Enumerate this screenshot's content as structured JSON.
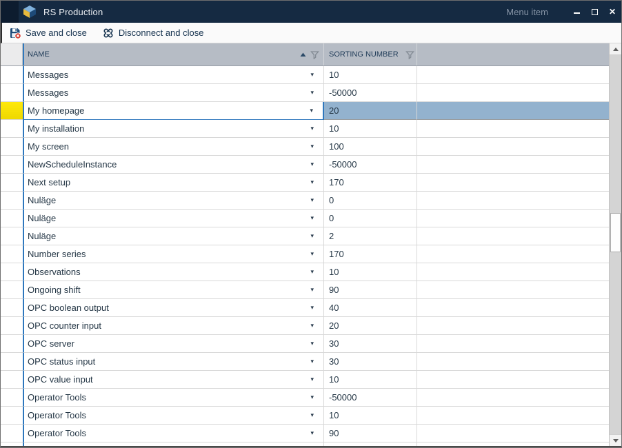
{
  "window": {
    "title": "RS Production",
    "menu_item": "Menu item"
  },
  "toolbar": {
    "save_label": "Save and close",
    "disconnect_label": "Disconnect and close"
  },
  "grid": {
    "columns": [
      {
        "label": "NAME",
        "sorted": "asc",
        "has_filter_icon": true
      },
      {
        "label": "SORTING NUMBER",
        "has_filter_icon": true
      }
    ],
    "selected_index": 2,
    "rows": [
      {
        "name": "Messages",
        "sorting_number": "10"
      },
      {
        "name": "Messages",
        "sorting_number": "-50000"
      },
      {
        "name": "My homepage",
        "sorting_number": "20"
      },
      {
        "name": "My installation",
        "sorting_number": "10"
      },
      {
        "name": "My screen",
        "sorting_number": "100"
      },
      {
        "name": "NewScheduleInstance",
        "sorting_number": "-50000"
      },
      {
        "name": "Next setup",
        "sorting_number": "170"
      },
      {
        "name": "Nuläge",
        "sorting_number": "0"
      },
      {
        "name": "Nuläge",
        "sorting_number": "0"
      },
      {
        "name": "Nuläge",
        "sorting_number": "2"
      },
      {
        "name": "Number series",
        "sorting_number": "170"
      },
      {
        "name": "Observations",
        "sorting_number": "10"
      },
      {
        "name": "Ongoing shift",
        "sorting_number": "90"
      },
      {
        "name": "OPC boolean output",
        "sorting_number": "40"
      },
      {
        "name": "OPC counter input",
        "sorting_number": "20"
      },
      {
        "name": "OPC server",
        "sorting_number": "30"
      },
      {
        "name": "OPC status input",
        "sorting_number": "30"
      },
      {
        "name": "OPC value input",
        "sorting_number": "10"
      },
      {
        "name": "Operator Tools",
        "sorting_number": "-50000"
      },
      {
        "name": "Operator Tools",
        "sorting_number": "10"
      },
      {
        "name": "Operator Tools",
        "sorting_number": "90"
      }
    ]
  },
  "icons": {
    "dropdown_glyph": "▾",
    "close_glyph": "✕"
  },
  "colors": {
    "titlebar": "#152a42",
    "selection": "#93b2ce",
    "row_highlight_yellow": "#f3e20b",
    "accent_blue": "#2e77bd",
    "toolbar_text": "#16334f"
  }
}
